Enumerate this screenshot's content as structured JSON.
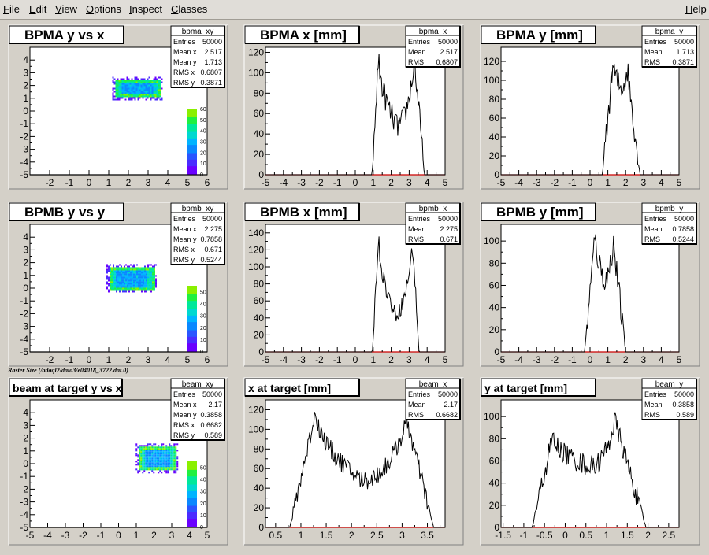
{
  "menubar": {
    "items": [
      {
        "label": "File",
        "key": "F",
        "rest": "ile"
      },
      {
        "label": "Edit",
        "key": "E",
        "rest": "dit"
      },
      {
        "label": "View",
        "key": "V",
        "rest": "iew"
      },
      {
        "label": "Options",
        "key": "O",
        "rest": "ptions"
      },
      {
        "label": "Inspect",
        "key": "I",
        "rest": "nspect"
      },
      {
        "label": "Classes",
        "key": "C",
        "rest": "lasses"
      }
    ],
    "help": {
      "label": "Help",
      "key": "H",
      "rest": "elp"
    }
  },
  "raster_caption": "Raster Size (/adaql2/data3/e04018_3722.dat.0)",
  "colors": {
    "frame_bg": "#d4d0c8",
    "plot_bg": "#ffffff",
    "axis": "#000000",
    "x_axis_line": "#cc0000",
    "hist_line": "#000000"
  },
  "chart_data": [
    {
      "id": "bpma_xy",
      "type": "heatmap",
      "title": "BPMA y vs x",
      "stats": {
        "name": "bpma_xy",
        "rows": [
          [
            "Entries",
            "50000"
          ],
          [
            "Mean x",
            "2.517"
          ],
          [
            "Mean y",
            "1.713"
          ],
          [
            "RMS x",
            "0.6807"
          ],
          [
            "RMS y",
            "0.3871"
          ]
        ]
      },
      "xlim": [
        -3,
        6
      ],
      "ylim": [
        -5,
        5
      ],
      "xticks": [
        -2,
        -1,
        0,
        1,
        2,
        3,
        4,
        5,
        6
      ],
      "yticks": [
        -5,
        -4,
        -3,
        -2,
        -1,
        0,
        1,
        2,
        3,
        4
      ],
      "spot": {
        "x": [
          1.3,
          3.6
        ],
        "y": [
          1.1,
          2.5
        ]
      },
      "palette_ticks": [
        0,
        10,
        20,
        30,
        40,
        50,
        60
      ],
      "palette_max": 60
    },
    {
      "id": "bpma_x",
      "type": "line",
      "title": "BPMA x [mm]",
      "stats": {
        "name": "bpma_x",
        "rows": [
          [
            "Entries",
            "50000"
          ],
          [
            "Mean",
            "2.517"
          ],
          [
            "RMS",
            "0.6807"
          ]
        ]
      },
      "xlim": [
        -5,
        5
      ],
      "ylim": [
        0,
        125
      ],
      "xticks": [
        -5,
        -4.5,
        -4,
        -3.5,
        -3,
        -2.5,
        -2,
        -1.5,
        -1,
        -0.5,
        0,
        0.5,
        1,
        1.5,
        2,
        2.5,
        3,
        3.5,
        4,
        4.5,
        5
      ],
      "xticklabels": [
        -5,
        -4,
        -3,
        -2,
        -1,
        0,
        1,
        2,
        3,
        4,
        5
      ],
      "yticks": [
        0,
        20,
        40,
        60,
        80,
        100,
        120
      ],
      "shape": {
        "lo": 1.1,
        "hi": 3.7,
        "edge": 0.16,
        "peaks": [
          [
            1.3,
            118
          ],
          [
            3.3,
            110
          ]
        ],
        "valley": [
          2.3,
          48
        ],
        "noise": 12
      }
    },
    {
      "id": "bpma_y",
      "type": "line",
      "title": "BPMA y [mm]",
      "stats": {
        "name": "bpma_y",
        "rows": [
          [
            "Entries",
            "50000"
          ],
          [
            "Mean",
            "1.713"
          ],
          [
            "RMS",
            "0.3871"
          ]
        ]
      },
      "xlim": [
        -5,
        5
      ],
      "ylim": [
        0,
        135
      ],
      "xticks": [
        -5,
        -4.5,
        -4,
        -3.5,
        -3,
        -2.5,
        -2,
        -1.5,
        -1,
        -0.5,
        0,
        0.5,
        1,
        1.5,
        2,
        2.5,
        3,
        3.5,
        4,
        4.5,
        5
      ],
      "xticklabels": [
        -5,
        -4,
        -3,
        -2,
        -1,
        0,
        1,
        2,
        3,
        4,
        5
      ],
      "yticks": [
        0,
        20,
        40,
        60,
        80,
        100,
        120
      ],
      "shape": {
        "lo": 0.9,
        "hi": 2.6,
        "edge": 0.2,
        "peaks": [
          [
            1.3,
            120
          ],
          [
            2.1,
            112
          ]
        ],
        "valley": [
          1.7,
          92
        ],
        "noise": 14
      }
    },
    {
      "id": "bpmb_xy",
      "type": "heatmap",
      "title": "BPMB y vs y",
      "stats": {
        "name": "bpmb_xy",
        "rows": [
          [
            "Entries",
            "50000"
          ],
          [
            "Mean x",
            "2.275"
          ],
          [
            "Mean y",
            "0.7858"
          ],
          [
            "RMS x",
            "0.671"
          ],
          [
            "RMS y",
            "0.5244"
          ]
        ]
      },
      "xlim": [
        -3,
        6
      ],
      "ylim": [
        -5,
        5
      ],
      "xticks": [
        -2,
        -1,
        0,
        1,
        2,
        3,
        4,
        5,
        6
      ],
      "yticks": [
        -5,
        -4,
        -3,
        -2,
        -1,
        0,
        1,
        2,
        3,
        4
      ],
      "spot": {
        "x": [
          1.0,
          3.3
        ],
        "y": [
          -0.1,
          1.7
        ]
      },
      "palette_ticks": [
        0,
        10,
        20,
        30,
        40,
        50
      ],
      "palette_max": 55
    },
    {
      "id": "bpmb_x",
      "type": "line",
      "title": "BPMB x [mm]",
      "stats": {
        "name": "bpmb_x",
        "rows": [
          [
            "Entries",
            "50000"
          ],
          [
            "Mean",
            "2.275"
          ],
          [
            "RMS",
            "0.671"
          ]
        ]
      },
      "xlim": [
        -5,
        5
      ],
      "ylim": [
        0,
        150
      ],
      "xticks": [
        -5,
        -4.5,
        -4,
        -3.5,
        -3,
        -2.5,
        -2,
        -1.5,
        -1,
        -0.5,
        0,
        0.5,
        1,
        1.5,
        2,
        2.5,
        3,
        3.5,
        4,
        4.5,
        5
      ],
      "xticklabels": [
        -5,
        -4,
        -3,
        -2,
        -1,
        0,
        1,
        2,
        3,
        4,
        5
      ],
      "yticks": [
        0,
        20,
        40,
        60,
        80,
        100,
        120,
        140
      ],
      "shape": {
        "lo": 1.1,
        "hi": 3.4,
        "edge": 0.15,
        "peaks": [
          [
            1.3,
            140
          ],
          [
            3.2,
            125
          ]
        ],
        "valley": [
          2.2,
          45
        ],
        "noise": 10
      }
    },
    {
      "id": "bpmb_y",
      "type": "line",
      "title": "BPMB y [mm]",
      "stats": {
        "name": "bpmb_y",
        "rows": [
          [
            "Entries",
            "50000"
          ],
          [
            "Mean",
            "0.7858"
          ],
          [
            "RMS",
            "0.5244"
          ]
        ]
      },
      "xlim": [
        -5,
        5
      ],
      "ylim": [
        0,
        115
      ],
      "xticks": [
        -5,
        -4.5,
        -4,
        -3.5,
        -3,
        -2.5,
        -2,
        -1.5,
        -1,
        -0.5,
        0,
        0.5,
        1,
        1.5,
        2,
        2.5,
        3,
        3.5,
        4,
        4.5,
        5
      ],
      "xticklabels": [
        -5,
        -4,
        -3,
        -2,
        -1,
        0,
        1,
        2,
        3,
        4,
        5
      ],
      "yticks": [
        0,
        20,
        40,
        60,
        80,
        100
      ],
      "shape": {
        "lo": -0.1,
        "hi": 1.8,
        "edge": 0.2,
        "peaks": [
          [
            0.3,
            108
          ],
          [
            1.3,
            100
          ]
        ],
        "valley": [
          0.8,
          65
        ],
        "noise": 12
      }
    },
    {
      "id": "beam_xy",
      "type": "heatmap",
      "title": "beam at target y vs x",
      "stats": {
        "name": "beam_xy",
        "rows": [
          [
            "Entries",
            "50000"
          ],
          [
            "Mean x",
            "2.17"
          ],
          [
            "Mean y",
            "0.3858"
          ],
          [
            "RMS x",
            "0.6682"
          ],
          [
            "RMS y",
            "0.589"
          ]
        ]
      },
      "xlim": [
        -5,
        5
      ],
      "ylim": [
        -5,
        5
      ],
      "xticks": [
        -5,
        -4,
        -3,
        -2,
        -1,
        0,
        1,
        2,
        3,
        4,
        5
      ],
      "yticks": [
        -5,
        -4,
        -3,
        -2,
        -1,
        0,
        1,
        2,
        3,
        4
      ],
      "spot": {
        "x": [
          1.1,
          3.2
        ],
        "y": [
          -0.5,
          1.4
        ]
      },
      "palette_ticks": [
        0,
        10,
        20,
        30,
        40,
        50
      ],
      "palette_max": 55
    },
    {
      "id": "beam_x",
      "type": "line",
      "title": "x at target [mm]",
      "stats": {
        "name": "beam_x",
        "rows": [
          [
            "Entries",
            "50000"
          ],
          [
            "Mean",
            "2.17"
          ],
          [
            "RMS",
            "0.6682"
          ]
        ]
      },
      "xlim": [
        0.3,
        3.85
      ],
      "ylim": [
        0,
        130
      ],
      "xticks": [
        0.5,
        0.75,
        1,
        1.25,
        1.5,
        1.75,
        2,
        2.25,
        2.5,
        2.75,
        3,
        3.25,
        3.5,
        3.75
      ],
      "xticklabels": [
        0.5,
        1,
        1.5,
        2,
        2.5,
        3,
        3.5
      ],
      "yticks": [
        0,
        20,
        40,
        60,
        80,
        100,
        120
      ],
      "shape": {
        "lo": 1.0,
        "hi": 3.4,
        "edge": 0.22,
        "peaks": [
          [
            1.3,
            120
          ],
          [
            3.1,
            108
          ]
        ],
        "valley": [
          2.2,
          48
        ],
        "noise": 10
      }
    },
    {
      "id": "beam_y",
      "type": "line",
      "title": "y at target [mm]",
      "stats": {
        "name": "beam_y",
        "rows": [
          [
            "Entries",
            "50000"
          ],
          [
            "Mean",
            "0.3858"
          ],
          [
            "RMS",
            "0.589"
          ]
        ]
      },
      "xlim": [
        -1.55,
        2.75
      ],
      "ylim": [
        0,
        115
      ],
      "xticks": [
        -1.5,
        -1.25,
        -1,
        -0.75,
        -0.5,
        -0.25,
        0,
        0.25,
        0.5,
        0.75,
        1,
        1.25,
        1.5,
        1.75,
        2,
        2.25,
        2.5
      ],
      "xticklabels": [
        -1.5,
        -1,
        -0.5,
        0,
        0.5,
        1,
        1.5,
        2,
        2.5
      ],
      "yticks": [
        0,
        20,
        40,
        60,
        80,
        100
      ],
      "shape": {
        "lo": -0.6,
        "hi": 1.75,
        "edge": 0.2,
        "peaks": [
          [
            -0.3,
            82
          ],
          [
            1.2,
            96
          ]
        ],
        "valley": [
          0.6,
          55
        ],
        "noise": 10
      }
    }
  ]
}
